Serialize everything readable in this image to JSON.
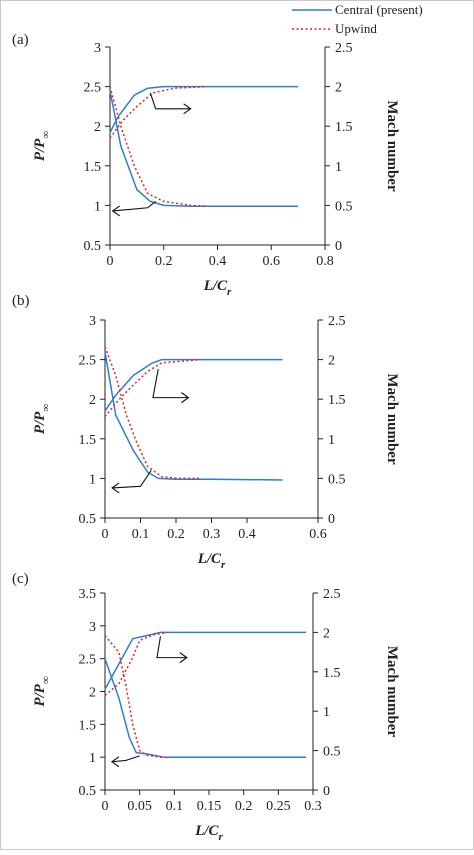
{
  "legend": {
    "entries": [
      {
        "label": "Central (present)",
        "color": "#2a7fd4",
        "style": "solid"
      },
      {
        "label": "Upwind",
        "color": "#e8201e",
        "style": "dotted"
      }
    ],
    "placement": "top-right"
  },
  "axis_text": {
    "xlabel_main": "L/C",
    "xlabel_sub": "r",
    "ylabel_left_main": "P/P",
    "ylabel_left_sub": "∞",
    "ylabel_right": "Mach number"
  },
  "chart_data": [
    {
      "type": "line",
      "panel_label": "(a)",
      "xlim": [
        0,
        0.8
      ],
      "xticks": [
        "0",
        "0.2",
        "0.4",
        "0.6",
        "0.8"
      ],
      "ylim_left": [
        0.5,
        3
      ],
      "yticks_left": [
        "0.5",
        "1",
        "1.5",
        "2",
        "2.5",
        "3"
      ],
      "ylim_right": [
        0,
        2.5
      ],
      "yticks_right": [
        "0",
        "0.5",
        "1",
        "1.5",
        "2",
        "2.5"
      ],
      "grid": false,
      "series": [
        {
          "name": "Central (present)",
          "axis": "left",
          "color": "#2a7fd4",
          "style": "solid",
          "points": [
            [
              0,
              2.45
            ],
            [
              0.04,
              1.75
            ],
            [
              0.1,
              1.2
            ],
            [
              0.15,
              1.05
            ],
            [
              0.2,
              1.0
            ],
            [
              0.3,
              0.99
            ],
            [
              0.5,
              0.99
            ],
            [
              0.7,
              0.99
            ]
          ]
        },
        {
          "name": "Central (present)",
          "axis": "right",
          "color": "#2a7fd4",
          "style": "solid",
          "points": [
            [
              0,
              1.42
            ],
            [
              0.03,
              1.62
            ],
            [
              0.09,
              1.89
            ],
            [
              0.14,
              1.98
            ],
            [
              0.2,
              2.0
            ],
            [
              0.4,
              2.0
            ],
            [
              0.7,
              2.0
            ]
          ]
        },
        {
          "name": "Upwind",
          "axis": "left",
          "color": "#e8201e",
          "style": "dotted",
          "points": [
            [
              0,
              2.5
            ],
            [
              0.04,
              2.0
            ],
            [
              0.09,
              1.5
            ],
            [
              0.14,
              1.15
            ],
            [
              0.2,
              1.05
            ],
            [
              0.3,
              1.0
            ],
            [
              0.36,
              0.99
            ]
          ]
        },
        {
          "name": "Upwind",
          "axis": "right",
          "color": "#e8201e",
          "style": "dotted",
          "points": [
            [
              0,
              1.35
            ],
            [
              0.05,
              1.58
            ],
            [
              0.1,
              1.75
            ],
            [
              0.16,
              1.92
            ],
            [
              0.24,
              1.98
            ],
            [
              0.36,
              2.0
            ]
          ]
        }
      ]
    },
    {
      "type": "line",
      "panel_label": "(b)",
      "xlim": [
        0,
        0.6
      ],
      "xticks": [
        "0",
        "0.1",
        "0.2",
        "0.3",
        "0.4",
        "0.6"
      ],
      "ylim_left": [
        0.5,
        3
      ],
      "yticks_left": [
        "0.5",
        "1",
        "1.5",
        "2",
        "2.5",
        "3"
      ],
      "ylim_right": [
        0,
        2.5
      ],
      "yticks_right": [
        "0",
        "0.5",
        "1",
        "1.5",
        "2",
        "2.5"
      ],
      "grid": false,
      "series": [
        {
          "name": "Central (present)",
          "axis": "left",
          "color": "#2a7fd4",
          "style": "solid",
          "points": [
            [
              0,
              2.6
            ],
            [
              0.03,
              1.8
            ],
            [
              0.08,
              1.35
            ],
            [
              0.12,
              1.08
            ],
            [
              0.15,
              1.0
            ],
            [
              0.2,
              0.99
            ],
            [
              0.3,
              0.99
            ],
            [
              0.5,
              0.98
            ]
          ]
        },
        {
          "name": "Central (present)",
          "axis": "right",
          "color": "#2a7fd4",
          "style": "solid",
          "points": [
            [
              0,
              1.35
            ],
            [
              0.03,
              1.55
            ],
            [
              0.08,
              1.8
            ],
            [
              0.13,
              1.95
            ],
            [
              0.16,
              2.0
            ],
            [
              0.3,
              2.0
            ],
            [
              0.5,
              2.0
            ]
          ]
        },
        {
          "name": "Upwind",
          "axis": "left",
          "color": "#e8201e",
          "style": "dotted",
          "points": [
            [
              0,
              2.66
            ],
            [
              0.03,
              2.3
            ],
            [
              0.06,
              1.8
            ],
            [
              0.09,
              1.45
            ],
            [
              0.12,
              1.15
            ],
            [
              0.16,
              1.02
            ],
            [
              0.21,
              1.0
            ],
            [
              0.27,
              1.0
            ]
          ]
        },
        {
          "name": "Upwind",
          "axis": "right",
          "color": "#e8201e",
          "style": "dotted",
          "points": [
            [
              0,
              1.28
            ],
            [
              0.04,
              1.5
            ],
            [
              0.08,
              1.68
            ],
            [
              0.12,
              1.85
            ],
            [
              0.16,
              1.96
            ],
            [
              0.27,
              2.0
            ]
          ]
        }
      ]
    },
    {
      "type": "line",
      "panel_label": "(c)",
      "xlim": [
        0,
        0.3
      ],
      "xticks": [
        "0",
        "0.05",
        "0.1",
        "0.15",
        "0.2",
        "0.25",
        "0.3"
      ],
      "ylim_left": [
        0.5,
        3.5
      ],
      "yticks_left": [
        "0.5",
        "1",
        "1.5",
        "2",
        "2.5",
        "3",
        "3.5"
      ],
      "ylim_right": [
        0,
        2.5
      ],
      "yticks_right": [
        "0",
        "0.5",
        "1",
        "1.5",
        "2",
        "2.5"
      ],
      "grid": false,
      "series": [
        {
          "name": "Central (present)",
          "axis": "left",
          "color": "#2a7fd4",
          "style": "solid",
          "points": [
            [
              0,
              2.5
            ],
            [
              0.02,
              1.9
            ],
            [
              0.035,
              1.3
            ],
            [
              0.045,
              1.07
            ],
            [
              0.06,
              1.05
            ],
            [
              0.085,
              1.0
            ],
            [
              0.15,
              1.0
            ],
            [
              0.29,
              1.0
            ]
          ]
        },
        {
          "name": "Central (present)",
          "axis": "right",
          "color": "#2a7fd4",
          "style": "solid",
          "points": [
            [
              0,
              1.28
            ],
            [
              0.02,
              1.6
            ],
            [
              0.04,
              1.92
            ],
            [
              0.06,
              1.96
            ],
            [
              0.08,
              2.0
            ],
            [
              0.15,
              2.0
            ],
            [
              0.29,
              2.0
            ]
          ]
        },
        {
          "name": "Upwind",
          "axis": "left",
          "color": "#e8201e",
          "style": "dotted",
          "points": [
            [
              0,
              2.85
            ],
            [
              0.02,
              2.6
            ],
            [
              0.03,
              2.1
            ],
            [
              0.04,
              1.5
            ],
            [
              0.05,
              1.1
            ],
            [
              0.06,
              1.03
            ],
            [
              0.08,
              1.0
            ],
            [
              0.09,
              1.0
            ]
          ]
        },
        {
          "name": "Upwind",
          "axis": "right",
          "color": "#e8201e",
          "style": "dotted",
          "points": [
            [
              0,
              1.2
            ],
            [
              0.02,
              1.35
            ],
            [
              0.04,
              1.68
            ],
            [
              0.05,
              1.9
            ],
            [
              0.07,
              1.97
            ],
            [
              0.09,
              2.0
            ]
          ]
        }
      ]
    }
  ]
}
